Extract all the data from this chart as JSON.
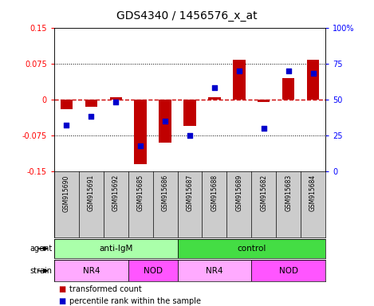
{
  "title": "GDS4340 / 1456576_x_at",
  "samples": [
    "GSM915690",
    "GSM915691",
    "GSM915692",
    "GSM915685",
    "GSM915686",
    "GSM915687",
    "GSM915688",
    "GSM915689",
    "GSM915682",
    "GSM915683",
    "GSM915684"
  ],
  "transformed_count": [
    -0.02,
    -0.015,
    0.005,
    -0.135,
    -0.09,
    -0.055,
    0.005,
    0.082,
    -0.005,
    0.045,
    0.082
  ],
  "percentile_rank": [
    32,
    38,
    48,
    18,
    35,
    25,
    58,
    70,
    30,
    70,
    68
  ],
  "ylim_left": [
    -0.15,
    0.15
  ],
  "ylim_right": [
    0,
    100
  ],
  "yticks_left": [
    -0.15,
    -0.075,
    0,
    0.075,
    0.15
  ],
  "ytick_labels_left": [
    "-0.15",
    "-0.075",
    "0",
    "0.075",
    "0.15"
  ],
  "yticks_right": [
    0,
    25,
    50,
    75,
    100
  ],
  "ytick_labels_right": [
    "0",
    "25",
    "50",
    "75",
    "100%"
  ],
  "dotted_hlines": [
    -0.075,
    0.075
  ],
  "bar_color": "#C00000",
  "dot_color": "#0000CC",
  "agent_groups": [
    {
      "label": "anti-IgM",
      "start": 0,
      "end": 5,
      "color": "#AAFFAA"
    },
    {
      "label": "control",
      "start": 5,
      "end": 11,
      "color": "#44DD44"
    }
  ],
  "strain_groups": [
    {
      "label": "NR4",
      "start": 0,
      "end": 3,
      "color": "#FFAAFF"
    },
    {
      "label": "NOD",
      "start": 3,
      "end": 5,
      "color": "#FF55FF"
    },
    {
      "label": "NR4",
      "start": 5,
      "end": 8,
      "color": "#FFAAFF"
    },
    {
      "label": "NOD",
      "start": 8,
      "end": 11,
      "color": "#FF55FF"
    }
  ],
  "zero_line_color": "#CC0000",
  "title_fontsize": 10,
  "tick_fontsize": 7,
  "annotation_fontsize": 7.5,
  "label_fontsize": 7,
  "sample_fontsize": 5.5
}
